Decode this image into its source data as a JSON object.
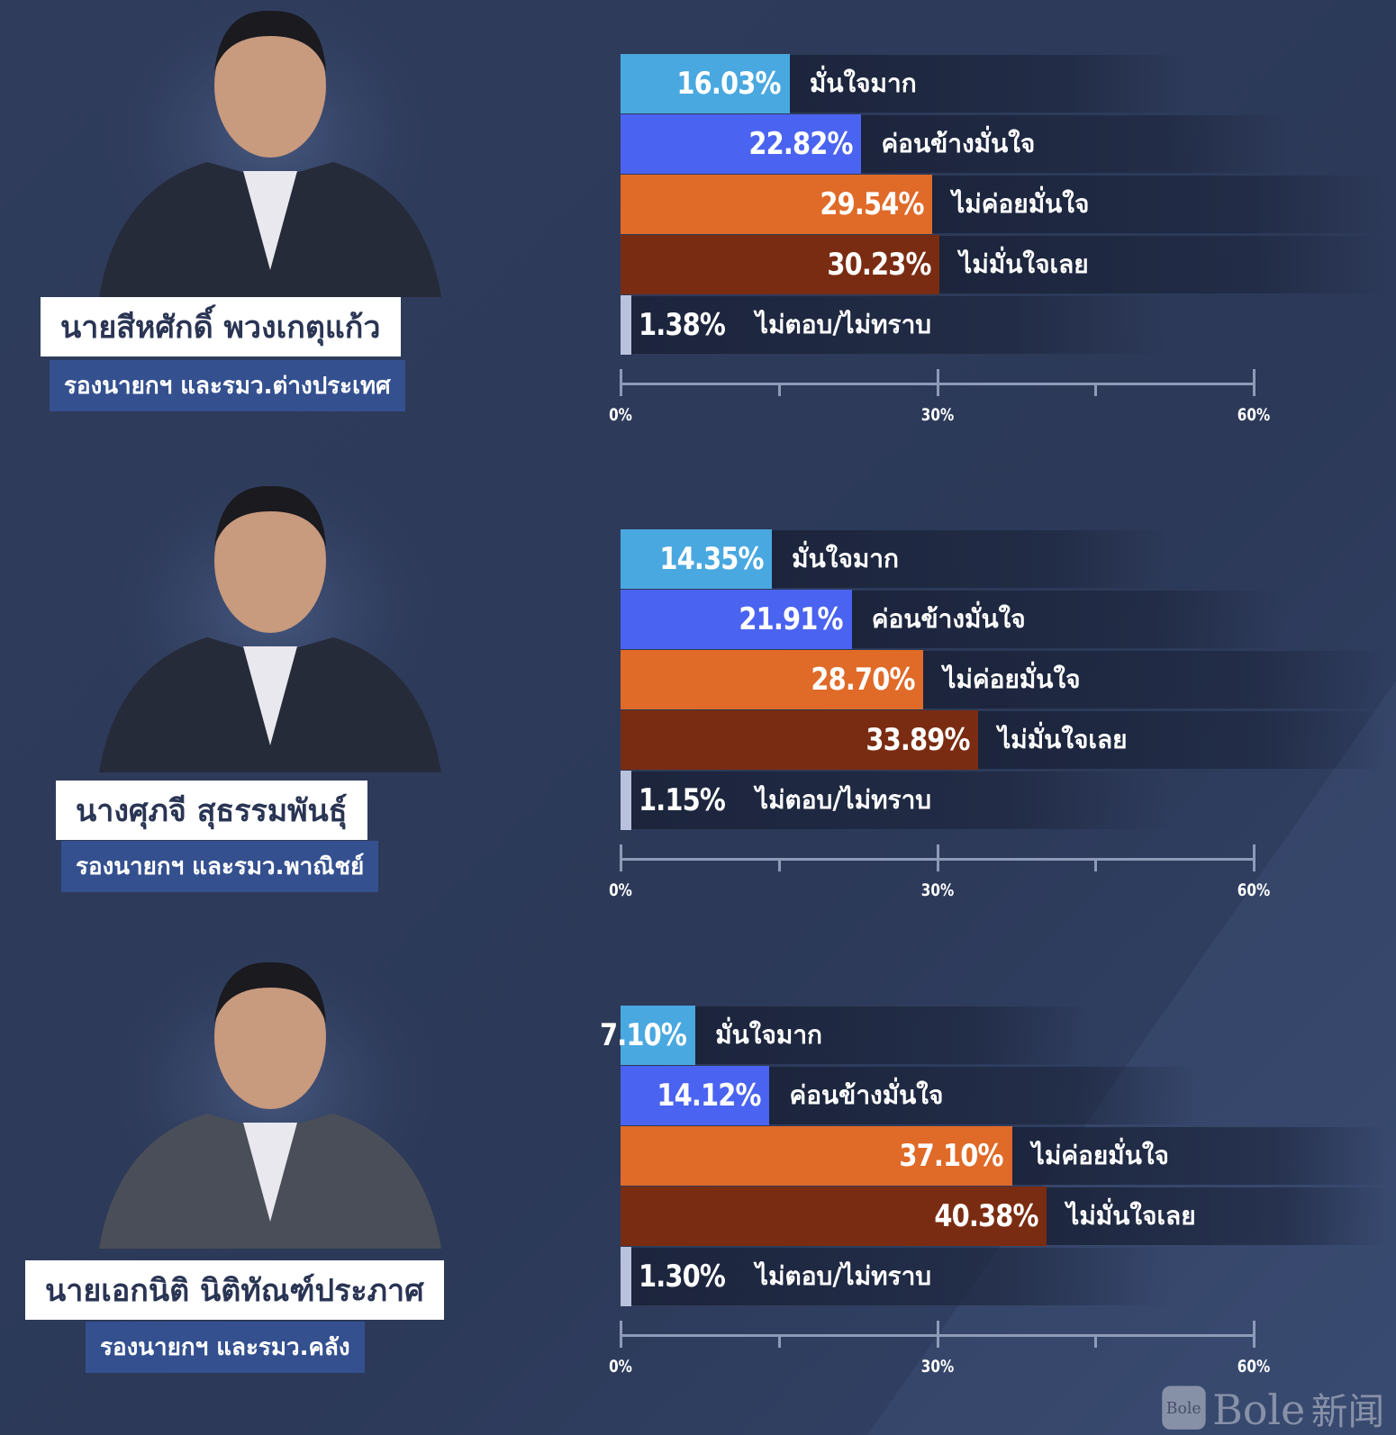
{
  "chart_data": [
    {
      "type": "bar",
      "orientation": "horizontal",
      "person": {
        "name": "นายสีหศักดิ์ พวงเกตุแก้ว",
        "role": "รองนายกฯ และรมว.ต่างประเทศ"
      },
      "categories": [
        "มั่นใจมาก",
        "ค่อนข้างมั่นใจ",
        "ไม่ค่อยมั่นใจ",
        "ไม่มั่นใจเลย",
        "ไม่ตอบ/ไม่ทราบ"
      ],
      "values": [
        16.03,
        22.82,
        29.54,
        30.23,
        1.38
      ],
      "value_labels": [
        "16.03%",
        "22.82%",
        "29.54%",
        "30.23%",
        "1.38%"
      ],
      "xlim": [
        0,
        60
      ],
      "tick_labels": [
        "0%",
        "30%",
        "60%"
      ]
    },
    {
      "type": "bar",
      "orientation": "horizontal",
      "person": {
        "name": "นางศุภจี สุธรรมพันธุ์",
        "role": "รองนายกฯ และรมว.พาณิชย์"
      },
      "categories": [
        "มั่นใจมาก",
        "ค่อนข้างมั่นใจ",
        "ไม่ค่อยมั่นใจ",
        "ไม่มั่นใจเลย",
        "ไม่ตอบ/ไม่ทราบ"
      ],
      "values": [
        14.35,
        21.91,
        28.7,
        33.89,
        1.15
      ],
      "value_labels": [
        "14.35%",
        "21.91%",
        "28.70%",
        "33.89%",
        "1.15%"
      ],
      "xlim": [
        0,
        60
      ],
      "tick_labels": [
        "0%",
        "30%",
        "60%"
      ]
    },
    {
      "type": "bar",
      "orientation": "horizontal",
      "person": {
        "name": "นายเอกนิติ นิติทัณฑ์ประภาศ",
        "role": "รองนายกฯ และรมว.คลัง"
      },
      "categories": [
        "มั่นใจมาก",
        "ค่อนข้างมั่นใจ",
        "ไม่ค่อยมั่นใจ",
        "ไม่มั่นใจเลย",
        "ไม่ตอบ/ไม่ทราบ"
      ],
      "values": [
        7.1,
        14.12,
        37.1,
        40.38,
        1.3
      ],
      "value_labels": [
        "7.10%",
        "14.12%",
        "37.10%",
        "40.38%",
        "1.30%"
      ],
      "xlim": [
        0,
        60
      ],
      "tick_labels": [
        "0%",
        "30%",
        "60%"
      ]
    }
  ],
  "colors": [
    "#4aa8e0",
    "#4a63f0",
    "#e06a28",
    "#7a2c12",
    "#b8c2dc"
  ],
  "background": "#2e3b5b",
  "watermark": "Bole新闻"
}
